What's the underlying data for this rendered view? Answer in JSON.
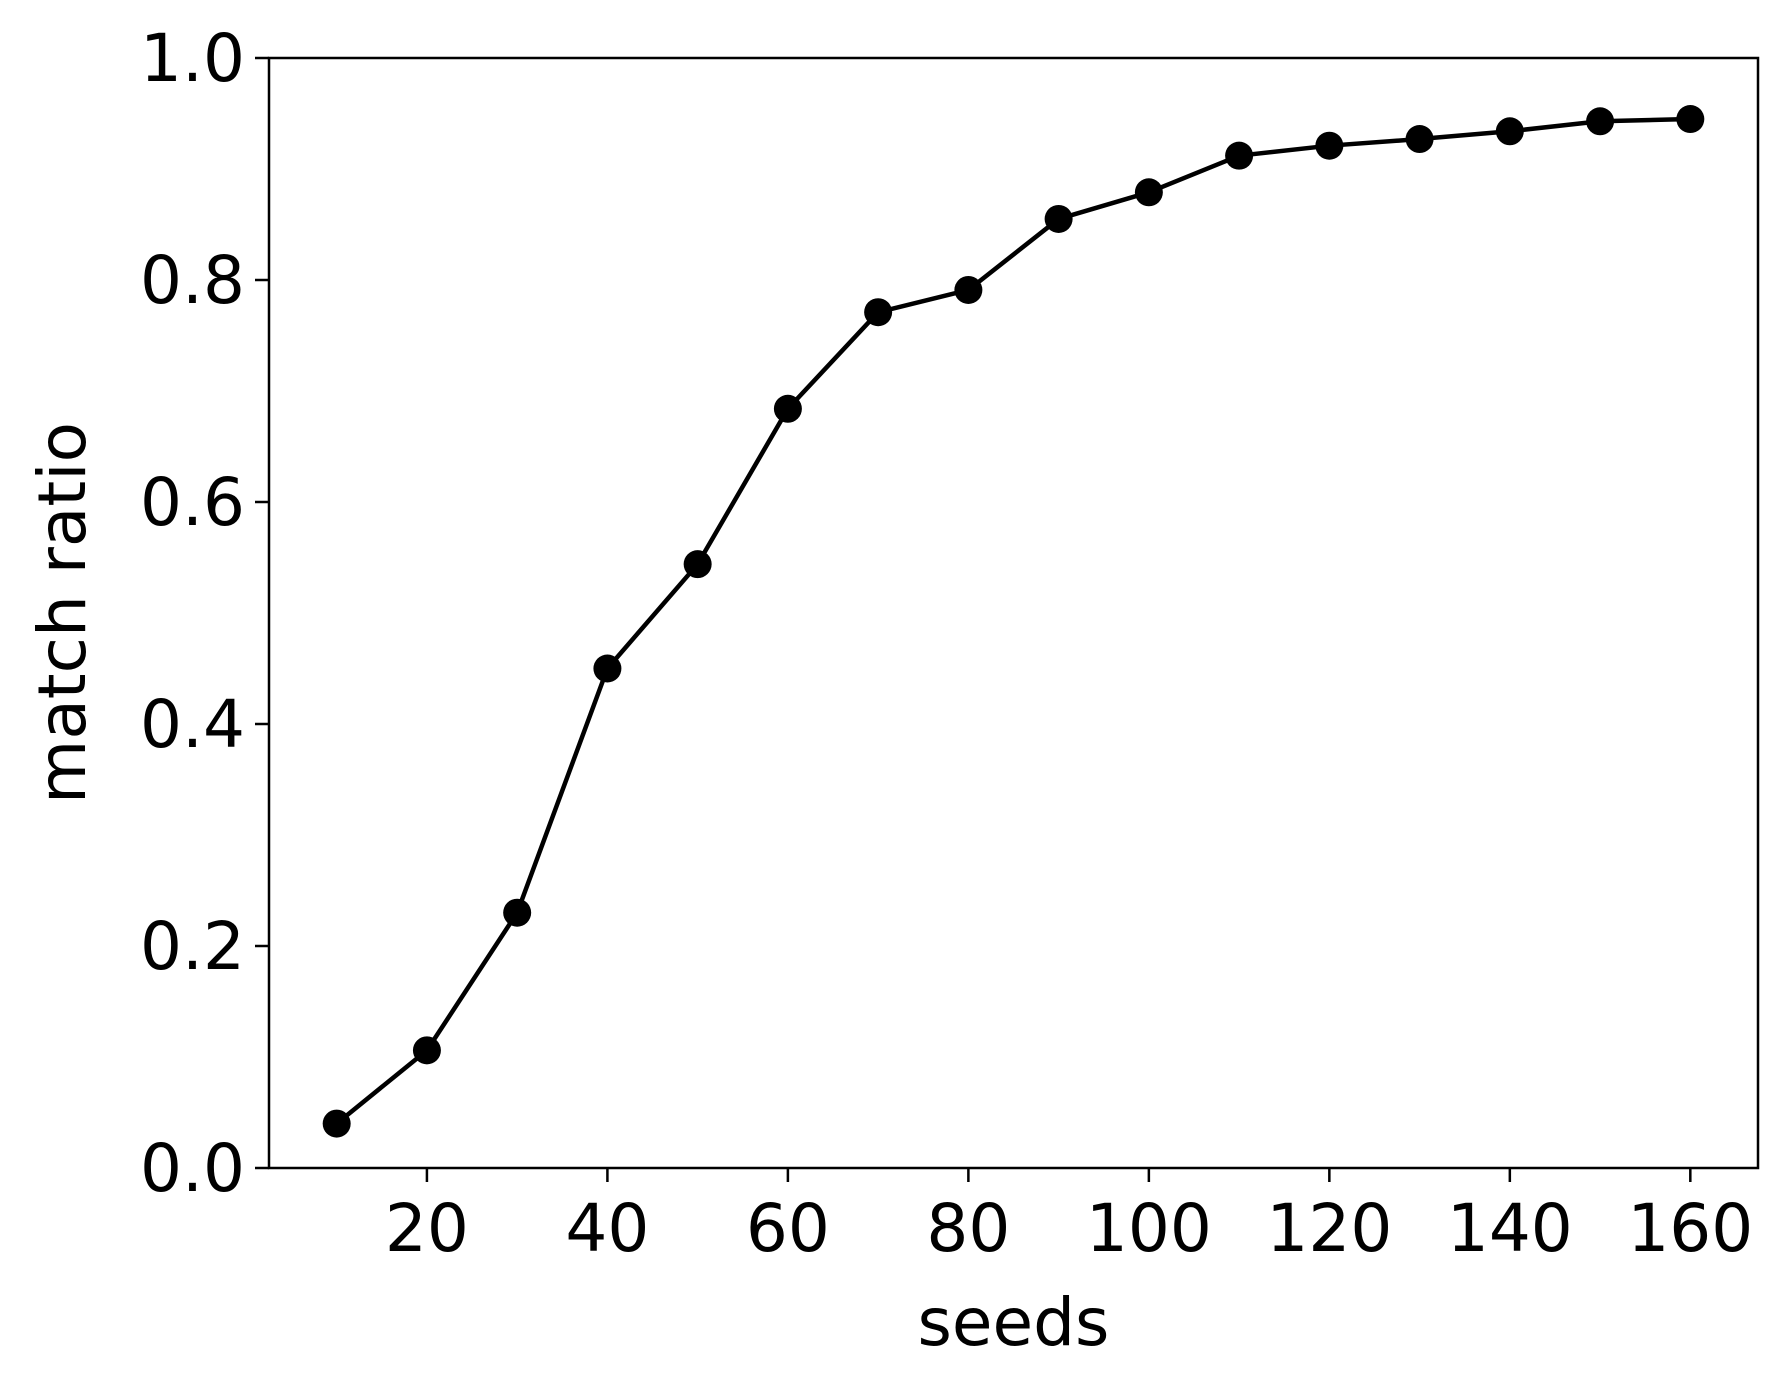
{
  "chart_data": {
    "type": "line",
    "title": "",
    "xlabel": "seeds",
    "ylabel": "match ratio",
    "xlim": [
      2.5,
      167.5
    ],
    "ylim": [
      0.0,
      1.0
    ],
    "xticks": [
      20,
      40,
      60,
      80,
      100,
      120,
      140,
      160
    ],
    "xtick_labels": [
      "20",
      "40",
      "60",
      "80",
      "100",
      "120",
      "140",
      "160"
    ],
    "yticks": [
      0.0,
      0.2,
      0.4,
      0.6,
      0.8,
      1.0
    ],
    "ytick_labels": [
      "0.0",
      "0.2",
      "0.4",
      "0.6",
      "0.8",
      "1.0"
    ],
    "grid": false,
    "legend": "none",
    "series": [
      {
        "color": "#000000",
        "marker": "circle",
        "x": [
          10,
          20,
          30,
          40,
          50,
          60,
          70,
          80,
          90,
          100,
          110,
          120,
          130,
          140,
          150,
          160
        ],
        "y": [
          0.04,
          0.106,
          0.23,
          0.45,
          0.544,
          0.684,
          0.771,
          0.791,
          0.855,
          0.879,
          0.912,
          0.921,
          0.927,
          0.934,
          0.943,
          0.945
        ]
      }
    ]
  }
}
